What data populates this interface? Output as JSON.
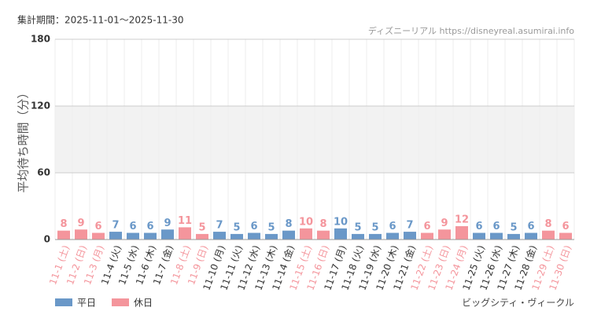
{
  "chart_data": {
    "type": "bar",
    "title": "集計期間：2025-11-01～2025-11-30",
    "source": "ディズニーリアル https://disneyreal.asumirai.info",
    "subtitle": "ビッグシティ・ヴィークル",
    "y_label": "平均待ち時間（分）",
    "categories": [
      "11-1 (土)",
      "11-2 (日)",
      "11-3 (月)",
      "11-4 (火)",
      "11-5 (水)",
      "11-6 (木)",
      "11-7 (金)",
      "11-8 (土)",
      "11-9 (日)",
      "11-10 (月)",
      "11-11 (火)",
      "11-12 (水)",
      "11-13 (木)",
      "11-14 (金)",
      "11-15 (土)",
      "11-16 (日)",
      "11-17 (月)",
      "11-18 (火)",
      "11-19 (水)",
      "11-20 (木)",
      "11-21 (金)",
      "11-22 (土)",
      "11-23 (日)",
      "11-24 (月)",
      "11-25 (火)",
      "11-26 (水)",
      "11-27 (木)",
      "11-28 (金)",
      "11-29 (土)",
      "11-30 (日)"
    ],
    "series": [
      {
        "name": "平日",
        "color": "#6a98c8",
        "values": [
          null,
          null,
          null,
          7,
          6,
          6,
          9,
          null,
          null,
          7,
          5,
          6,
          5,
          8,
          null,
          null,
          10,
          5,
          5,
          6,
          7,
          null,
          null,
          null,
          6,
          6,
          5,
          6,
          null,
          null
        ]
      },
      {
        "name": "休日",
        "color": "#f4959c",
        "values": [
          8,
          9,
          6,
          null,
          null,
          null,
          null,
          11,
          5,
          null,
          null,
          null,
          null,
          null,
          10,
          8,
          null,
          null,
          null,
          null,
          null,
          6,
          9,
          12,
          null,
          null,
          null,
          null,
          8,
          6
        ]
      }
    ],
    "ylim": [
      0,
      180
    ],
    "yticks": [
      0,
      60,
      120,
      180
    ],
    "grid": true
  }
}
